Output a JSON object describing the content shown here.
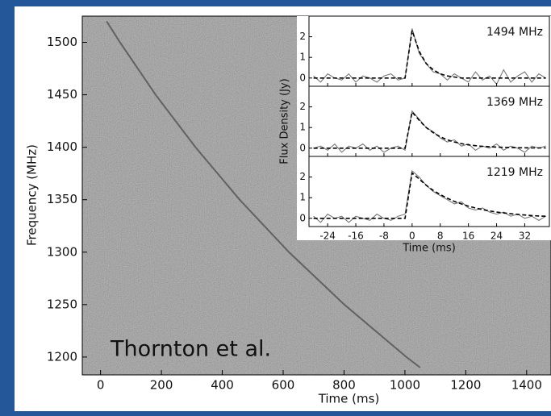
{
  "chart_data": [
    {
      "type": "line",
      "xlabel": "Time (ms)",
      "ylabel": "Frequency (MHz)",
      "annotation": "Thornton et al.",
      "xlim": [
        -60,
        1480
      ],
      "ylim": [
        1183,
        1525
      ],
      "xticks": [
        0,
        200,
        400,
        600,
        800,
        1000,
        1200,
        1400
      ],
      "yticks": [
        1200,
        1250,
        1300,
        1350,
        1400,
        1450,
        1500
      ],
      "series": [
        {
          "color": "#2a2a2a",
          "x": [
            20,
            64,
            181,
            312,
            457,
            619,
            801,
            1005,
            1050
          ],
          "values": [
            1520,
            1500,
            1450,
            1400,
            1350,
            1300,
            1250,
            1200,
            1190
          ]
        }
      ]
    },
    {
      "type": "line",
      "xlabel": "Time (ms)",
      "ylabel": "Flux Density (Jy)",
      "xlim": [
        -29.3,
        39
      ],
      "ylim": [
        -0.4,
        3.0
      ],
      "xticks": [
        -24,
        -16,
        -8,
        0,
        8,
        16,
        24,
        32
      ],
      "yticks": [
        0,
        1,
        2
      ],
      "x": [
        -28,
        -26,
        -24,
        -22,
        -20,
        -18,
        -16,
        -14,
        -12,
        -10,
        -8,
        -6,
        -4,
        -2,
        0,
        2,
        4,
        6,
        8,
        10,
        12,
        14,
        16,
        18,
        20,
        22,
        24,
        26,
        28,
        30,
        32,
        34,
        36,
        38
      ],
      "panels": [
        {
          "label": "1494 MHz",
          "series": [
            {
              "color": "#777777",
              "dashed": false,
              "values": [
                0.1,
                -0.2,
                0.2,
                0.0,
                -0.1,
                0.2,
                -0.2,
                0.1,
                0.0,
                -0.2,
                0.1,
                0.2,
                -0.1,
                0.0,
                2.4,
                1.2,
                0.7,
                0.3,
                0.2,
                -0.1,
                0.2,
                0.0,
                -0.2,
                0.3,
                -0.1,
                0.1,
                -0.3,
                0.4,
                -0.2,
                0.1,
                0.3,
                -0.2,
                0.2,
                0.0
              ]
            },
            {
              "color": "#000000",
              "dashed": true,
              "values": [
                0,
                0,
                0,
                0,
                0,
                0,
                0,
                0,
                0,
                0,
                0,
                0,
                0,
                0,
                2.3,
                1.3,
                0.7,
                0.4,
                0.2,
                0.1,
                0.05,
                0,
                0,
                0,
                0,
                0,
                0,
                0,
                0,
                0,
                0,
                0,
                0,
                0
              ]
            }
          ]
        },
        {
          "label": "1369 MHz",
          "series": [
            {
              "color": "#777777",
              "dashed": false,
              "values": [
                0.0,
                0.1,
                -0.1,
                0.2,
                -0.2,
                0.1,
                0.0,
                0.2,
                -0.1,
                0.1,
                -0.2,
                0.0,
                0.1,
                -0.1,
                1.8,
                1.4,
                1.0,
                0.8,
                0.5,
                0.3,
                0.4,
                0.1,
                0.2,
                -0.1,
                0.1,
                0.0,
                0.2,
                -0.1,
                0.1,
                0.0,
                -0.2,
                0.1,
                0.0,
                0.1
              ]
            },
            {
              "color": "#000000",
              "dashed": true,
              "values": [
                0,
                0,
                0,
                0,
                0,
                0,
                0,
                0,
                0,
                0,
                0,
                0,
                0,
                0,
                1.75,
                1.35,
                1.0,
                0.75,
                0.55,
                0.4,
                0.3,
                0.22,
                0.16,
                0.12,
                0.09,
                0.07,
                0.05,
                0.04,
                0.03,
                0.02,
                0.02,
                0.01,
                0.01,
                0.01
              ]
            }
          ]
        },
        {
          "label": "1219 MHz",
          "series": [
            {
              "color": "#777777",
              "dashed": false,
              "values": [
                0.1,
                -0.2,
                0.2,
                0.0,
                0.1,
                -0.2,
                0.1,
                0.0,
                -0.1,
                0.2,
                0.0,
                -0.1,
                0.1,
                0.2,
                2.3,
                2.0,
                1.6,
                1.3,
                1.1,
                0.9,
                0.7,
                0.8,
                0.5,
                0.4,
                0.5,
                0.3,
                0.2,
                0.3,
                0.1,
                0.2,
                0.0,
                0.1,
                -0.1,
                0.1
              ]
            },
            {
              "color": "#000000",
              "dashed": true,
              "values": [
                0,
                0,
                0,
                0,
                0,
                0,
                0,
                0,
                0,
                0,
                0,
                0,
                0,
                0,
                2.2,
                1.9,
                1.6,
                1.35,
                1.15,
                0.97,
                0.82,
                0.7,
                0.59,
                0.5,
                0.42,
                0.36,
                0.3,
                0.26,
                0.22,
                0.19,
                0.16,
                0.13,
                0.11,
                0.1
              ]
            }
          ]
        }
      ]
    }
  ]
}
